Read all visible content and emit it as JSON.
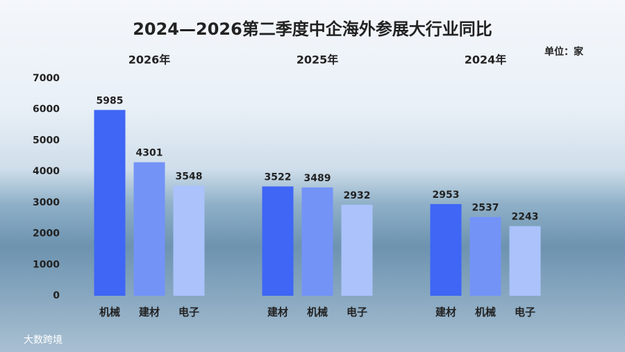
{
  "chart_data": {
    "type": "grouped-bar",
    "title": "2024—2026第二季度中企海外参展大行业同比",
    "unit": "单位：家",
    "watermark": "大数跨境",
    "ylim": [
      0,
      7000
    ],
    "yticks": [
      0,
      1000,
      2000,
      3000,
      4000,
      5000,
      6000,
      7000
    ],
    "colors": [
      "#3f66f5",
      "#7393f7",
      "#abc2fb"
    ],
    "groups": [
      {
        "name": "2026年",
        "categories": [
          "机械",
          "建材",
          "电子"
        ],
        "values": [
          5985,
          4301,
          3548
        ]
      },
      {
        "name": "2025年",
        "categories": [
          "建材",
          "机械",
          "电子"
        ],
        "values": [
          3522,
          3489,
          2932
        ]
      },
      {
        "name": "2024年",
        "categories": [
          "建材",
          "机械",
          "电子"
        ],
        "values": [
          2953,
          2537,
          2243
        ]
      }
    ]
  }
}
